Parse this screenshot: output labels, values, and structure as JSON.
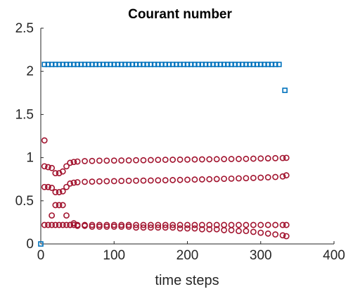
{
  "chart_data": {
    "type": "scatter",
    "title": "Courant number",
    "xlabel": "time steps",
    "ylabel": "",
    "xlim": [
      0,
      400
    ],
    "ylim": [
      0,
      2.5
    ],
    "xticks": [
      "0",
      "100",
      "200",
      "300",
      "400"
    ],
    "yticks": [
      "0",
      "0.5",
      "1",
      "1.5",
      "2",
      "2.5"
    ],
    "grid": false,
    "legend": "none",
    "colors": {
      "blue": "#0072BD",
      "red": "#A2142F"
    },
    "series": [
      {
        "marker": "square",
        "color": "#0072BD",
        "x": [
          0,
          5,
          10,
          15,
          20,
          25,
          30,
          35,
          40,
          45,
          50,
          55,
          60,
          65,
          70,
          75,
          80,
          85,
          90,
          95,
          100,
          105,
          110,
          115,
          120,
          125,
          130,
          135,
          140,
          145,
          150,
          155,
          160,
          165,
          170,
          175,
          180,
          185,
          190,
          195,
          200,
          205,
          210,
          215,
          220,
          225,
          230,
          235,
          240,
          245,
          250,
          255,
          260,
          265,
          270,
          275,
          280,
          285,
          290,
          295,
          300,
          305,
          310,
          315,
          320,
          325,
          333
        ],
        "y": [
          0,
          2.08,
          2.08,
          2.08,
          2.08,
          2.08,
          2.08,
          2.08,
          2.08,
          2.08,
          2.08,
          2.08,
          2.08,
          2.08,
          2.08,
          2.08,
          2.08,
          2.08,
          2.08,
          2.08,
          2.08,
          2.08,
          2.08,
          2.08,
          2.08,
          2.08,
          2.08,
          2.08,
          2.08,
          2.08,
          2.08,
          2.08,
          2.08,
          2.08,
          2.08,
          2.08,
          2.08,
          2.08,
          2.08,
          2.08,
          2.08,
          2.08,
          2.08,
          2.08,
          2.08,
          2.08,
          2.08,
          2.08,
          2.08,
          2.08,
          2.08,
          2.08,
          2.08,
          2.08,
          2.08,
          2.08,
          2.08,
          2.08,
          2.08,
          2.08,
          2.08,
          2.08,
          2.08,
          2.08,
          2.08,
          2.08,
          1.78
        ]
      },
      {
        "marker": "circle",
        "color": "#A2142F",
        "x": [
          5,
          10,
          15,
          20,
          25,
          30,
          35,
          40,
          45,
          50,
          60,
          70,
          80,
          90,
          100,
          110,
          120,
          130,
          140,
          150,
          160,
          170,
          180,
          190,
          200,
          210,
          220,
          230,
          240,
          250,
          260,
          270,
          280,
          290,
          300,
          310,
          320,
          330,
          335
        ],
        "y": [
          0.9,
          0.89,
          0.88,
          0.82,
          0.82,
          0.84,
          0.9,
          0.94,
          0.95,
          0.955,
          0.96,
          0.962,
          0.965,
          0.965,
          0.966,
          0.967,
          0.968,
          0.97,
          0.97,
          0.972,
          0.974,
          0.975,
          0.976,
          0.977,
          0.978,
          0.979,
          0.98,
          0.981,
          0.982,
          0.983,
          0.984,
          0.985,
          0.986,
          0.988,
          0.99,
          0.992,
          0.994,
          0.996,
          0.998
        ]
      },
      {
        "marker": "circle",
        "color": "#A2142F",
        "x": [
          5,
          10,
          15,
          20,
          25,
          30,
          35,
          40,
          45,
          50,
          60,
          70,
          80,
          90,
          100,
          110,
          120,
          130,
          140,
          150,
          160,
          170,
          180,
          190,
          200,
          210,
          220,
          230,
          240,
          250,
          260,
          270,
          280,
          290,
          300,
          310,
          320,
          330,
          335
        ],
        "y": [
          0.66,
          0.66,
          0.65,
          0.6,
          0.6,
          0.61,
          0.66,
          0.7,
          0.71,
          0.715,
          0.72,
          0.722,
          0.725,
          0.727,
          0.728,
          0.73,
          0.732,
          0.733,
          0.734,
          0.735,
          0.737,
          0.738,
          0.74,
          0.742,
          0.744,
          0.746,
          0.748,
          0.75,
          0.752,
          0.755,
          0.757,
          0.76,
          0.762,
          0.765,
          0.768,
          0.772,
          0.776,
          0.782,
          0.795
        ]
      },
      {
        "marker": "circle",
        "color": "#A2142F",
        "x": [
          5,
          10,
          15,
          20,
          25,
          30,
          35,
          40,
          45,
          50,
          60,
          70,
          80,
          90,
          100,
          110,
          120,
          130,
          140,
          150,
          160,
          170,
          180,
          190,
          200,
          210,
          220,
          230,
          240,
          250,
          260,
          270,
          280,
          290,
          300,
          310,
          320,
          330,
          335
        ],
        "y": [
          0.22,
          0.22,
          0.22,
          0.22,
          0.22,
          0.22,
          0.22,
          0.22,
          0.22,
          0.22,
          0.22,
          0.22,
          0.22,
          0.22,
          0.22,
          0.22,
          0.22,
          0.22,
          0.22,
          0.22,
          0.22,
          0.22,
          0.22,
          0.22,
          0.22,
          0.22,
          0.22,
          0.22,
          0.22,
          0.22,
          0.22,
          0.22,
          0.22,
          0.22,
          0.22,
          0.22,
          0.22,
          0.22,
          0.22
        ]
      },
      {
        "marker": "circle",
        "color": "#A2142F",
        "x": [
          5,
          10,
          15,
          20,
          25,
          30,
          35,
          40,
          45,
          50,
          60,
          70,
          80,
          90,
          100,
          110,
          120,
          130,
          140,
          150,
          160,
          170,
          180,
          190,
          200,
          210,
          220,
          230,
          240,
          250,
          260,
          270,
          280,
          290,
          300,
          310,
          320,
          330,
          335
        ],
        "y": [
          1.2,
          0.66,
          0.33,
          0.45,
          0.45,
          0.45,
          0.33,
          0.22,
          0.24,
          0.21,
          0.21,
          0.2,
          0.2,
          0.2,
          0.2,
          0.2,
          0.2,
          0.19,
          0.19,
          0.19,
          0.19,
          0.19,
          0.19,
          0.18,
          0.18,
          0.18,
          0.17,
          0.17,
          0.17,
          0.16,
          0.16,
          0.15,
          0.15,
          0.14,
          0.13,
          0.12,
          0.11,
          0.1,
          0.09
        ]
      }
    ]
  }
}
